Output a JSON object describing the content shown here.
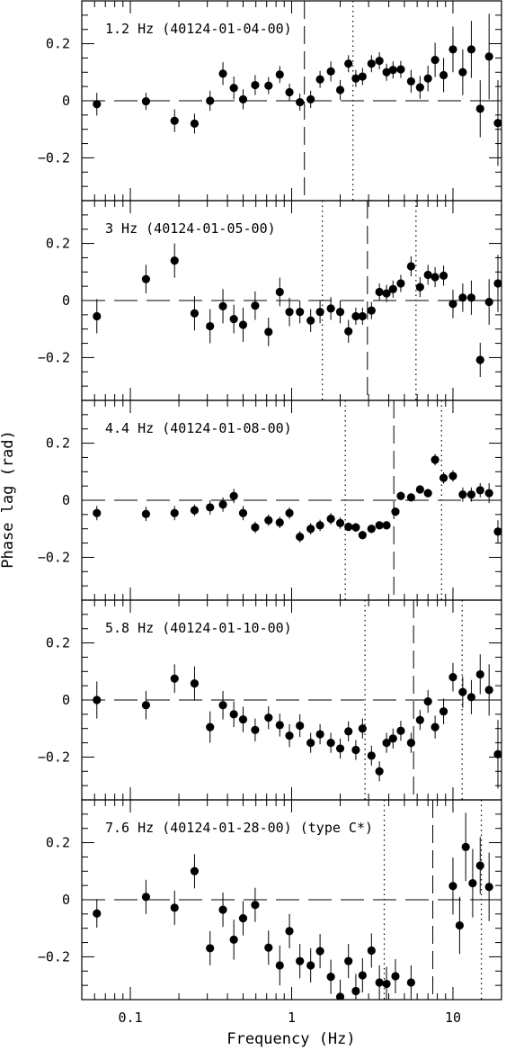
{
  "figure": {
    "xlabel": "Frequency (Hz)",
    "ylabel": "Phase lag (rad)"
  },
  "chart_data": [
    {
      "type": "scatter",
      "title": "1.2 Hz (40124-01-04-00)",
      "xscale": "log",
      "xlim": [
        0.05,
        20
      ],
      "ylim": [
        -0.35,
        0.35
      ],
      "yticks": [
        -0.2,
        0,
        0.2
      ],
      "ytick_labels": [
        "−0.2",
        "0",
        "0.2"
      ],
      "dashed_line_x": 1.2,
      "dotted_line_x": [
        2.4
      ],
      "points": [
        {
          "x": 0.062,
          "y": -0.012,
          "err": 0.04
        },
        {
          "x": 0.125,
          "y": -0.002,
          "err": 0.03
        },
        {
          "x": 0.188,
          "y": -0.07,
          "err": 0.04
        },
        {
          "x": 0.25,
          "y": -0.08,
          "err": 0.035
        },
        {
          "x": 0.312,
          "y": 0.0,
          "err": 0.035
        },
        {
          "x": 0.375,
          "y": 0.095,
          "err": 0.04
        },
        {
          "x": 0.438,
          "y": 0.045,
          "err": 0.04
        },
        {
          "x": 0.5,
          "y": 0.005,
          "err": 0.035
        },
        {
          "x": 0.594,
          "y": 0.055,
          "err": 0.035
        },
        {
          "x": 0.719,
          "y": 0.053,
          "err": 0.03
        },
        {
          "x": 0.844,
          "y": 0.092,
          "err": 0.03
        },
        {
          "x": 0.969,
          "y": 0.03,
          "err": 0.03
        },
        {
          "x": 1.125,
          "y": -0.005,
          "err": 0.03
        },
        {
          "x": 1.312,
          "y": 0.005,
          "err": 0.03
        },
        {
          "x": 1.5,
          "y": 0.075,
          "err": 0.03
        },
        {
          "x": 1.75,
          "y": 0.103,
          "err": 0.035
        },
        {
          "x": 2.0,
          "y": 0.038,
          "err": 0.035
        },
        {
          "x": 2.25,
          "y": 0.13,
          "err": 0.03
        },
        {
          "x": 2.5,
          "y": 0.078,
          "err": 0.03
        },
        {
          "x": 2.75,
          "y": 0.085,
          "err": 0.03
        },
        {
          "x": 3.125,
          "y": 0.13,
          "err": 0.03
        },
        {
          "x": 3.5,
          "y": 0.14,
          "err": 0.03
        },
        {
          "x": 3.875,
          "y": 0.1,
          "err": 0.03
        },
        {
          "x": 4.25,
          "y": 0.108,
          "err": 0.03
        },
        {
          "x": 4.75,
          "y": 0.11,
          "err": 0.03
        },
        {
          "x": 5.5,
          "y": 0.068,
          "err": 0.04
        },
        {
          "x": 6.25,
          "y": 0.047,
          "err": 0.04
        },
        {
          "x": 7.0,
          "y": 0.078,
          "err": 0.045
        },
        {
          "x": 7.75,
          "y": 0.143,
          "err": 0.06
        },
        {
          "x": 8.75,
          "y": 0.09,
          "err": 0.06
        },
        {
          "x": 10.0,
          "y": 0.18,
          "err": 0.08
        },
        {
          "x": 11.5,
          "y": 0.1,
          "err": 0.08
        },
        {
          "x": 13.0,
          "y": 0.18,
          "err": 0.1
        },
        {
          "x": 14.75,
          "y": -0.028,
          "err": 0.1
        },
        {
          "x": 16.75,
          "y": 0.155,
          "err": 0.15
        },
        {
          "x": 19.0,
          "y": -0.078,
          "err": 0.15
        }
      ]
    },
    {
      "type": "scatter",
      "title": "3 Hz (40124-01-05-00)",
      "xscale": "log",
      "xlim": [
        0.05,
        20
      ],
      "ylim": [
        -0.35,
        0.35
      ],
      "yticks": [
        -0.2,
        0,
        0.2
      ],
      "ytick_labels": [
        "−0.2",
        "0",
        "0.2"
      ],
      "dashed_line_x": 2.95,
      "dotted_line_x": [
        1.55,
        5.9
      ],
      "points": [
        {
          "x": 0.062,
          "y": -0.055,
          "err": 0.06
        },
        {
          "x": 0.125,
          "y": 0.075,
          "err": 0.05
        },
        {
          "x": 0.188,
          "y": 0.14,
          "err": 0.06
        },
        {
          "x": 0.25,
          "y": -0.045,
          "err": 0.06
        },
        {
          "x": 0.312,
          "y": -0.09,
          "err": 0.06
        },
        {
          "x": 0.375,
          "y": -0.02,
          "err": 0.06
        },
        {
          "x": 0.438,
          "y": -0.065,
          "err": 0.05
        },
        {
          "x": 0.5,
          "y": -0.085,
          "err": 0.06
        },
        {
          "x": 0.594,
          "y": -0.018,
          "err": 0.05
        },
        {
          "x": 0.719,
          "y": -0.11,
          "err": 0.05
        },
        {
          "x": 0.844,
          "y": 0.03,
          "err": 0.05
        },
        {
          "x": 0.969,
          "y": -0.04,
          "err": 0.05
        },
        {
          "x": 1.125,
          "y": -0.04,
          "err": 0.04
        },
        {
          "x": 1.312,
          "y": -0.07,
          "err": 0.04
        },
        {
          "x": 1.5,
          "y": -0.04,
          "err": 0.04
        },
        {
          "x": 1.75,
          "y": -0.028,
          "err": 0.04
        },
        {
          "x": 2.0,
          "y": -0.04,
          "err": 0.04
        },
        {
          "x": 2.25,
          "y": -0.108,
          "err": 0.04
        },
        {
          "x": 2.5,
          "y": -0.055,
          "err": 0.03
        },
        {
          "x": 2.75,
          "y": -0.055,
          "err": 0.03
        },
        {
          "x": 3.125,
          "y": -0.035,
          "err": 0.03
        },
        {
          "x": 3.5,
          "y": 0.03,
          "err": 0.03
        },
        {
          "x": 3.875,
          "y": 0.025,
          "err": 0.03
        },
        {
          "x": 4.25,
          "y": 0.04,
          "err": 0.03
        },
        {
          "x": 4.75,
          "y": 0.06,
          "err": 0.03
        },
        {
          "x": 5.5,
          "y": 0.12,
          "err": 0.035
        },
        {
          "x": 6.25,
          "y": 0.047,
          "err": 0.035
        },
        {
          "x": 7.0,
          "y": 0.09,
          "err": 0.035
        },
        {
          "x": 7.75,
          "y": 0.082,
          "err": 0.035
        },
        {
          "x": 8.75,
          "y": 0.087,
          "err": 0.035
        },
        {
          "x": 10.0,
          "y": -0.012,
          "err": 0.05
        },
        {
          "x": 11.5,
          "y": 0.01,
          "err": 0.05
        },
        {
          "x": 13.0,
          "y": 0.01,
          "err": 0.06
        },
        {
          "x": 14.75,
          "y": -0.208,
          "err": 0.06
        },
        {
          "x": 16.75,
          "y": -0.005,
          "err": 0.08
        },
        {
          "x": 19.0,
          "y": 0.06,
          "err": 0.1
        }
      ]
    },
    {
      "type": "scatter",
      "title": "4.4 Hz (40124-01-08-00)",
      "xscale": "log",
      "xlim": [
        0.05,
        20
      ],
      "ylim": [
        -0.35,
        0.35
      ],
      "yticks": [
        -0.2,
        0,
        0.2
      ],
      "ytick_labels": [
        "−0.2",
        "0",
        "0.2"
      ],
      "dashed_line_x": 4.3,
      "dotted_line_x": [
        2.15,
        8.5
      ],
      "points": [
        {
          "x": 0.062,
          "y": -0.045,
          "err": 0.025
        },
        {
          "x": 0.125,
          "y": -0.048,
          "err": 0.025
        },
        {
          "x": 0.188,
          "y": -0.045,
          "err": 0.025
        },
        {
          "x": 0.25,
          "y": -0.035,
          "err": 0.02
        },
        {
          "x": 0.312,
          "y": -0.025,
          "err": 0.025
        },
        {
          "x": 0.375,
          "y": -0.015,
          "err": 0.025
        },
        {
          "x": 0.438,
          "y": 0.015,
          "err": 0.025
        },
        {
          "x": 0.5,
          "y": -0.045,
          "err": 0.025
        },
        {
          "x": 0.594,
          "y": -0.095,
          "err": 0.02
        },
        {
          "x": 0.719,
          "y": -0.07,
          "err": 0.02
        },
        {
          "x": 0.844,
          "y": -0.078,
          "err": 0.02
        },
        {
          "x": 0.969,
          "y": -0.045,
          "err": 0.02
        },
        {
          "x": 1.125,
          "y": -0.128,
          "err": 0.02
        },
        {
          "x": 1.312,
          "y": -0.1,
          "err": 0.02
        },
        {
          "x": 1.5,
          "y": -0.088,
          "err": 0.02
        },
        {
          "x": 1.75,
          "y": -0.065,
          "err": 0.02
        },
        {
          "x": 2.0,
          "y": -0.08,
          "err": 0.02
        },
        {
          "x": 2.25,
          "y": -0.093,
          "err": 0.015
        },
        {
          "x": 2.5,
          "y": -0.095,
          "err": 0.015
        },
        {
          "x": 2.75,
          "y": -0.122,
          "err": 0.015
        },
        {
          "x": 3.125,
          "y": -0.1,
          "err": 0.015
        },
        {
          "x": 3.5,
          "y": -0.088,
          "err": 0.015
        },
        {
          "x": 3.875,
          "y": -0.088,
          "err": 0.015
        },
        {
          "x": 4.4,
          "y": -0.04,
          "err": 0.015
        },
        {
          "x": 4.75,
          "y": 0.015,
          "err": 0.015
        },
        {
          "x": 5.5,
          "y": 0.01,
          "err": 0.015
        },
        {
          "x": 6.25,
          "y": 0.038,
          "err": 0.015
        },
        {
          "x": 7.0,
          "y": 0.025,
          "err": 0.015
        },
        {
          "x": 7.75,
          "y": 0.142,
          "err": 0.02
        },
        {
          "x": 8.75,
          "y": 0.078,
          "err": 0.02
        },
        {
          "x": 10.0,
          "y": 0.085,
          "err": 0.02
        },
        {
          "x": 11.5,
          "y": 0.02,
          "err": 0.025
        },
        {
          "x": 13.0,
          "y": 0.02,
          "err": 0.025
        },
        {
          "x": 14.75,
          "y": 0.035,
          "err": 0.025
        },
        {
          "x": 16.75,
          "y": 0.025,
          "err": 0.035
        },
        {
          "x": 19.0,
          "y": -0.11,
          "err": 0.04
        }
      ]
    },
    {
      "type": "scatter",
      "title": "5.8 Hz (40124-01-10-00)",
      "xscale": "log",
      "xlim": [
        0.05,
        20
      ],
      "ylim": [
        -0.35,
        0.35
      ],
      "yticks": [
        -0.2,
        0,
        0.2
      ],
      "ytick_labels": [
        "−0.2",
        "0",
        "0.2"
      ],
      "dashed_line_x": 5.7,
      "dotted_line_x": [
        2.85,
        11.4
      ],
      "points": [
        {
          "x": 0.062,
          "y": 0.0,
          "err": 0.065
        },
        {
          "x": 0.125,
          "y": -0.018,
          "err": 0.05
        },
        {
          "x": 0.188,
          "y": 0.075,
          "err": 0.05
        },
        {
          "x": 0.25,
          "y": 0.058,
          "err": 0.06
        },
        {
          "x": 0.312,
          "y": -0.095,
          "err": 0.055
        },
        {
          "x": 0.375,
          "y": -0.018,
          "err": 0.05
        },
        {
          "x": 0.438,
          "y": -0.05,
          "err": 0.045
        },
        {
          "x": 0.5,
          "y": -0.068,
          "err": 0.045
        },
        {
          "x": 0.594,
          "y": -0.105,
          "err": 0.04
        },
        {
          "x": 0.719,
          "y": -0.062,
          "err": 0.04
        },
        {
          "x": 0.844,
          "y": -0.088,
          "err": 0.04
        },
        {
          "x": 0.969,
          "y": -0.125,
          "err": 0.04
        },
        {
          "x": 1.125,
          "y": -0.09,
          "err": 0.04
        },
        {
          "x": 1.312,
          "y": -0.15,
          "err": 0.035
        },
        {
          "x": 1.5,
          "y": -0.12,
          "err": 0.035
        },
        {
          "x": 1.75,
          "y": -0.15,
          "err": 0.035
        },
        {
          "x": 2.0,
          "y": -0.17,
          "err": 0.035
        },
        {
          "x": 2.25,
          "y": -0.11,
          "err": 0.035
        },
        {
          "x": 2.5,
          "y": -0.175,
          "err": 0.035
        },
        {
          "x": 2.75,
          "y": -0.1,
          "err": 0.035
        },
        {
          "x": 3.125,
          "y": -0.195,
          "err": 0.035
        },
        {
          "x": 3.5,
          "y": -0.25,
          "err": 0.035
        },
        {
          "x": 3.875,
          "y": -0.15,
          "err": 0.035
        },
        {
          "x": 4.25,
          "y": -0.135,
          "err": 0.035
        },
        {
          "x": 4.75,
          "y": -0.108,
          "err": 0.035
        },
        {
          "x": 5.5,
          "y": -0.15,
          "err": 0.035
        },
        {
          "x": 6.25,
          "y": -0.07,
          "err": 0.035
        },
        {
          "x": 7.0,
          "y": -0.005,
          "err": 0.04
        },
        {
          "x": 7.75,
          "y": -0.095,
          "err": 0.04
        },
        {
          "x": 8.75,
          "y": -0.04,
          "err": 0.045
        },
        {
          "x": 10.0,
          "y": 0.08,
          "err": 0.05
        },
        {
          "x": 11.5,
          "y": 0.028,
          "err": 0.055
        },
        {
          "x": 13.0,
          "y": 0.01,
          "err": 0.06
        },
        {
          "x": 14.75,
          "y": 0.09,
          "err": 0.07
        },
        {
          "x": 16.75,
          "y": 0.035,
          "err": 0.09
        },
        {
          "x": 19.0,
          "y": -0.19,
          "err": 0.12
        }
      ]
    },
    {
      "type": "scatter",
      "title": "7.6 Hz (40124-01-28-00) (type C*)",
      "xscale": "log",
      "xlim": [
        0.05,
        20
      ],
      "ylim": [
        -0.35,
        0.35
      ],
      "yticks": [
        -0.2,
        0,
        0.2
      ],
      "ytick_labels": [
        "−0.2",
        "0",
        "0.2"
      ],
      "dashed_line_x": 7.5,
      "dotted_line_x": [
        3.75,
        15.0
      ],
      "points": [
        {
          "x": 0.062,
          "y": -0.048,
          "err": 0.05
        },
        {
          "x": 0.125,
          "y": 0.01,
          "err": 0.06
        },
        {
          "x": 0.188,
          "y": -0.028,
          "err": 0.06
        },
        {
          "x": 0.25,
          "y": 0.1,
          "err": 0.06
        },
        {
          "x": 0.312,
          "y": -0.17,
          "err": 0.06
        },
        {
          "x": 0.375,
          "y": -0.035,
          "err": 0.06
        },
        {
          "x": 0.438,
          "y": -0.14,
          "err": 0.07
        },
        {
          "x": 0.5,
          "y": -0.065,
          "err": 0.06
        },
        {
          "x": 0.594,
          "y": -0.018,
          "err": 0.06
        },
        {
          "x": 0.719,
          "y": -0.168,
          "err": 0.06
        },
        {
          "x": 0.844,
          "y": -0.23,
          "err": 0.07
        },
        {
          "x": 0.969,
          "y": -0.11,
          "err": 0.06
        },
        {
          "x": 1.125,
          "y": -0.215,
          "err": 0.06
        },
        {
          "x": 1.312,
          "y": -0.23,
          "err": 0.06
        },
        {
          "x": 1.5,
          "y": -0.18,
          "err": 0.06
        },
        {
          "x": 1.75,
          "y": -0.27,
          "err": 0.06
        },
        {
          "x": 2.0,
          "y": -0.34,
          "err": 0.06
        },
        {
          "x": 2.25,
          "y": -0.215,
          "err": 0.06
        },
        {
          "x": 2.5,
          "y": -0.32,
          "err": 0.06
        },
        {
          "x": 2.75,
          "y": -0.265,
          "err": 0.06
        },
        {
          "x": 3.125,
          "y": -0.178,
          "err": 0.06
        },
        {
          "x": 3.5,
          "y": -0.29,
          "err": 0.06
        },
        {
          "x": 3.875,
          "y": -0.295,
          "err": 0.06
        },
        {
          "x": 4.4,
          "y": -0.268,
          "err": 0.06
        },
        {
          "x": 5.5,
          "y": -0.29,
          "err": 0.06
        },
        {
          "x": 10.0,
          "y": 0.048,
          "err": 0.1
        },
        {
          "x": 11.0,
          "y": -0.09,
          "err": 0.1
        },
        {
          "x": 12.0,
          "y": 0.185,
          "err": 0.12
        },
        {
          "x": 13.25,
          "y": 0.058,
          "err": 0.12
        },
        {
          "x": 14.75,
          "y": 0.12,
          "err": 0.1
        },
        {
          "x": 16.75,
          "y": 0.045,
          "err": 0.12
        }
      ]
    }
  ]
}
